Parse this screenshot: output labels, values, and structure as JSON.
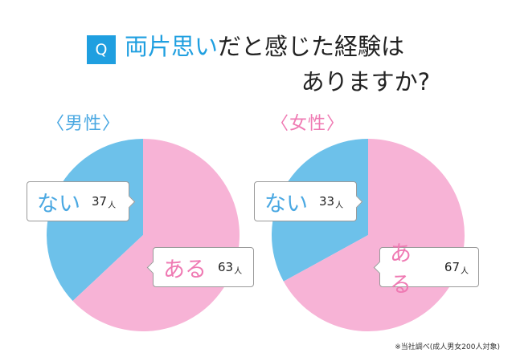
{
  "header": {
    "badge": "Q",
    "title_accent": "両片思い",
    "title_rest": "だと感じた経験は",
    "title_line2": "ありますか?"
  },
  "chart_data": [
    {
      "type": "pie",
      "title": "〈男性〉",
      "categories": [
        "ない",
        "ある"
      ],
      "values": [
        37,
        63
      ],
      "unit": "人",
      "colors": [
        "#6dc1ea",
        "#f7b3d6"
      ],
      "data_labels": [
        "37",
        "63"
      ]
    },
    {
      "type": "pie",
      "title": "〈女性〉",
      "categories": [
        "ない",
        "ある"
      ],
      "values": [
        33,
        67
      ],
      "unit": "人",
      "colors": [
        "#6dc1ea",
        "#f7b3d6"
      ],
      "data_labels": [
        "33",
        "67"
      ]
    }
  ],
  "footnote": "※当社調べ(成人男女200人対象)"
}
